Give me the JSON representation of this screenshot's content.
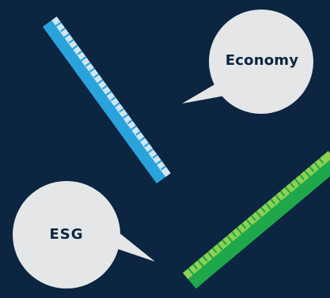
{
  "bubbles": {
    "economy": {
      "label": "Economy"
    },
    "esg": {
      "label": "ESG"
    }
  },
  "colors": {
    "background": "#0c2540",
    "bubble": "#e4e6e8",
    "ruler_blue": "#2aa3dc",
    "ruler_blue_edge": "#cfe6f2",
    "ruler_green": "#1fa84b",
    "ruler_green_edge": "#8fd052",
    "bubble_text": "#0c2540"
  },
  "icons": {
    "ruler_top": "blue-ruler-icon",
    "ruler_bottom": "green-ruler-icon"
  }
}
